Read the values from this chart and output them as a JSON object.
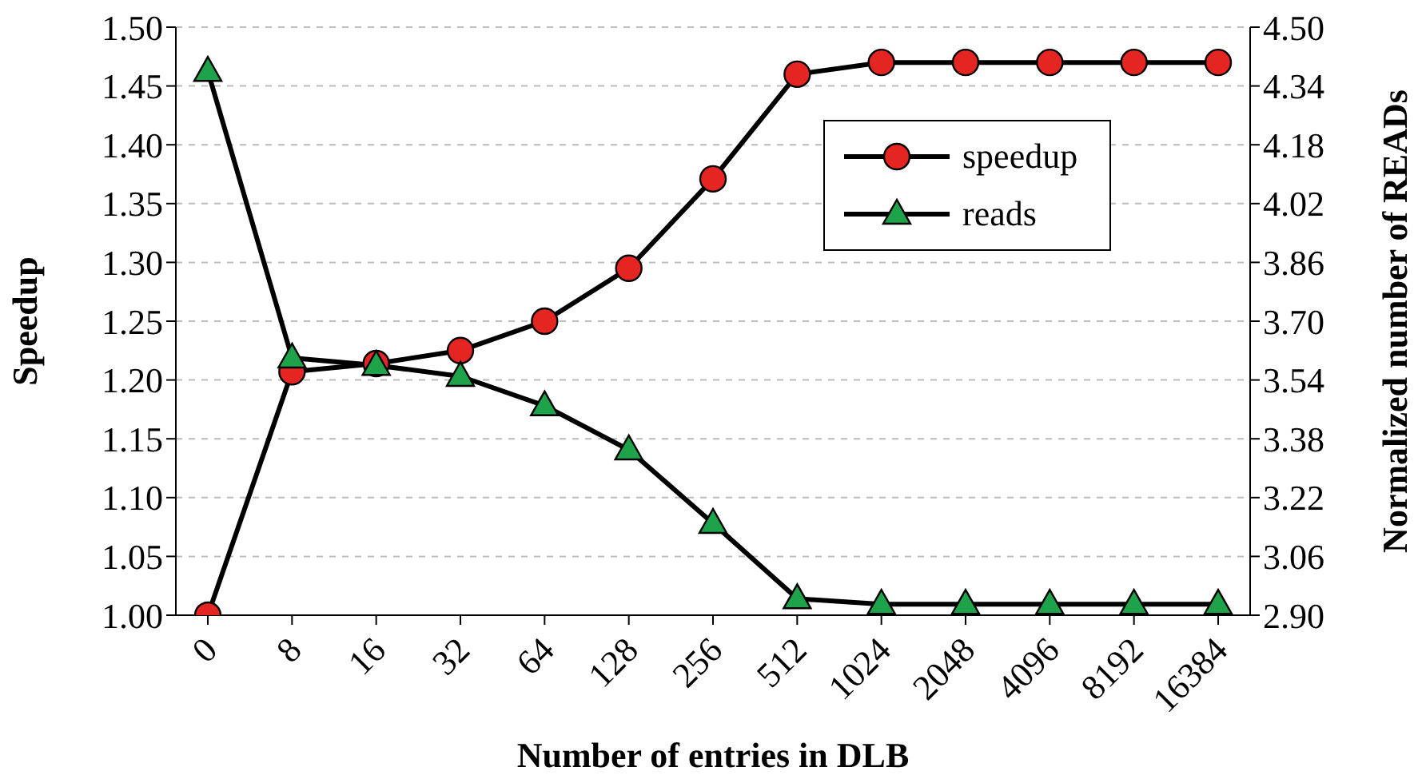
{
  "chart_data": {
    "type": "line",
    "xlabel": "Number of entries in DLB",
    "ylabel": "Speedup",
    "y2label": "Normalized number of READs",
    "categories": [
      "0",
      "8",
      "16",
      "32",
      "64",
      "128",
      "256",
      "512",
      "1024",
      "2048",
      "4096",
      "8192",
      "16384"
    ],
    "series": [
      {
        "name": "speedup",
        "color": "#e52521",
        "marker": "circle",
        "values": [
          1.0,
          1.207,
          1.214,
          1.225,
          1.25,
          1.295,
          1.371,
          1.46,
          1.47,
          1.47,
          1.47,
          1.47,
          1.47
        ]
      },
      {
        "name": "reads",
        "color": "#1fa34a",
        "marker": "triangle",
        "axis": "y2",
        "values": [
          4.38,
          3.6,
          3.58,
          3.55,
          3.47,
          3.35,
          3.15,
          2.945,
          2.93,
          2.93,
          2.93,
          2.93,
          2.93
        ]
      }
    ],
    "ylim": [
      1.0,
      1.5
    ],
    "yticks": [
      {
        "value": 1.0,
        "label": "1.00"
      },
      1.05,
      {
        "value": 1.1,
        "label": "1.10"
      },
      1.15,
      {
        "value": 1.2,
        "label": "1.20"
      },
      1.25,
      {
        "value": 1.3,
        "label": "1.30"
      },
      1.35,
      {
        "value": 1.4,
        "label": "1.40"
      },
      1.45,
      {
        "value": 1.5,
        "label": "1.50"
      }
    ],
    "y2lim": [
      2.9,
      4.5
    ],
    "y2ticks": [
      {
        "value": 2.9,
        "label": "2.90"
      },
      3.06,
      3.22,
      3.38,
      3.54,
      {
        "value": 3.7,
        "label": "3.70"
      },
      3.86,
      4.02,
      4.18,
      4.34,
      {
        "value": 4.5,
        "label": "4.50"
      }
    ],
    "grid": "y",
    "legend": "top right",
    "line_style": "solid"
  }
}
